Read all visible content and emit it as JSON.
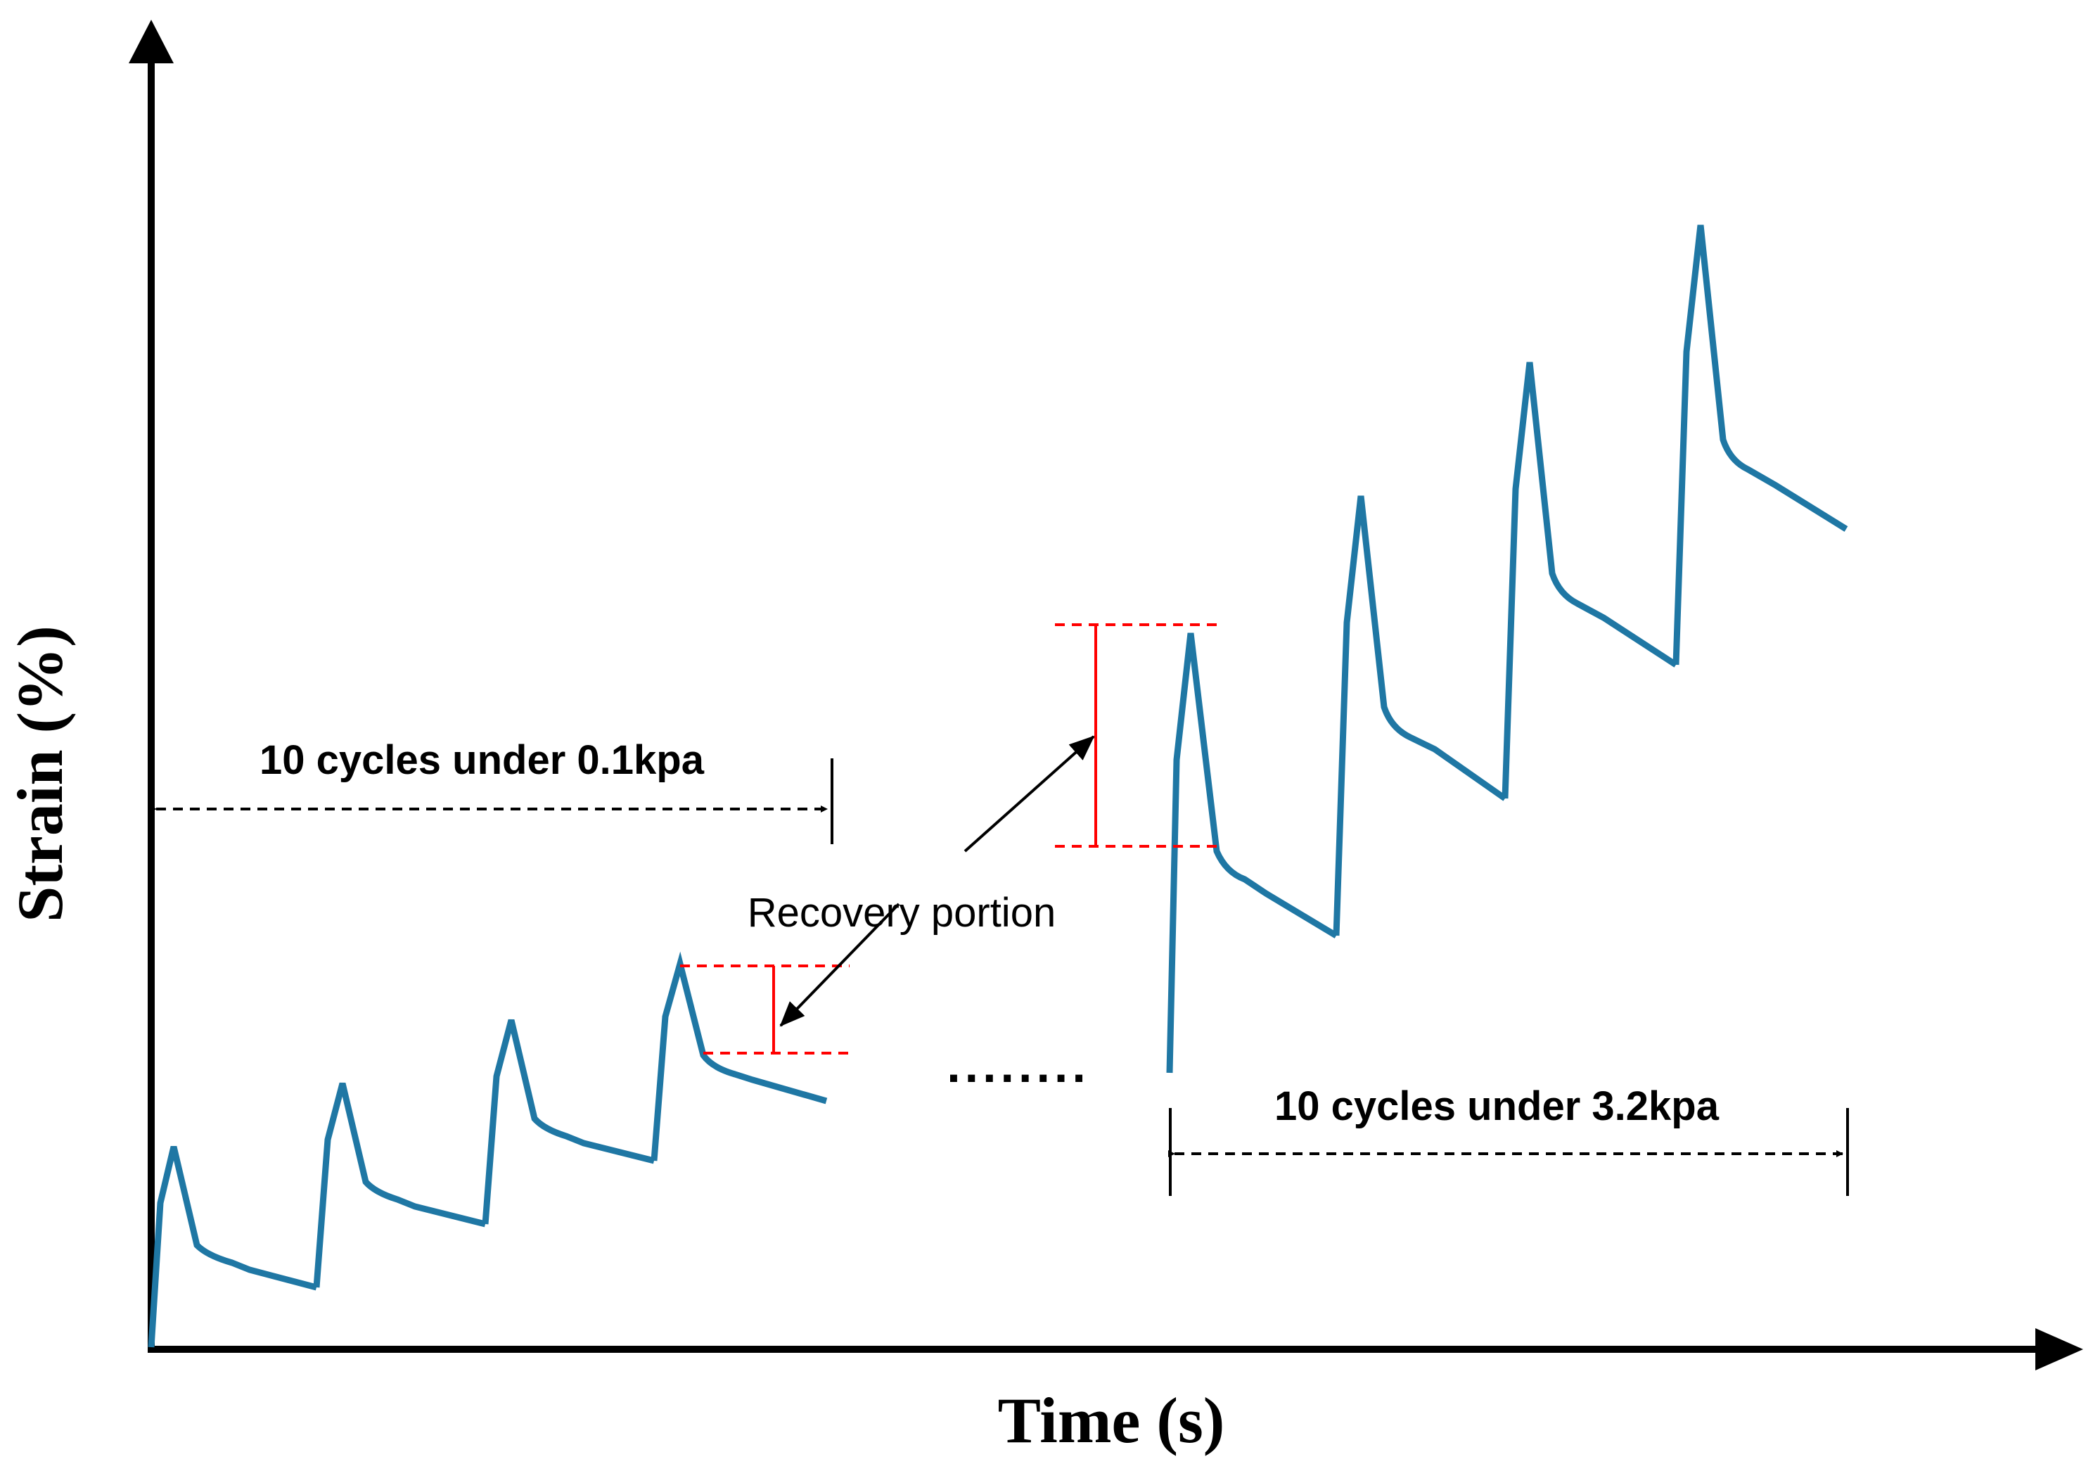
{
  "diagram": {
    "axes": {
      "x_label": "Time (s)",
      "y_label": "Strain (%)"
    },
    "phases": [
      {
        "label": "10 cycles under 0.1kpa",
        "cycles": 10,
        "stress_kpa": 0.1
      },
      {
        "label": "10 cycles under 3.2kpa",
        "cycles": 10,
        "stress_kpa": 3.2
      }
    ],
    "ellipsis": "........",
    "annotation": {
      "label": "Recovery portion"
    },
    "colors": {
      "curve": "#1f77a4",
      "axes": "#000000",
      "recovery_marker": "#ff0000",
      "dimension_lines": "#000000"
    }
  }
}
